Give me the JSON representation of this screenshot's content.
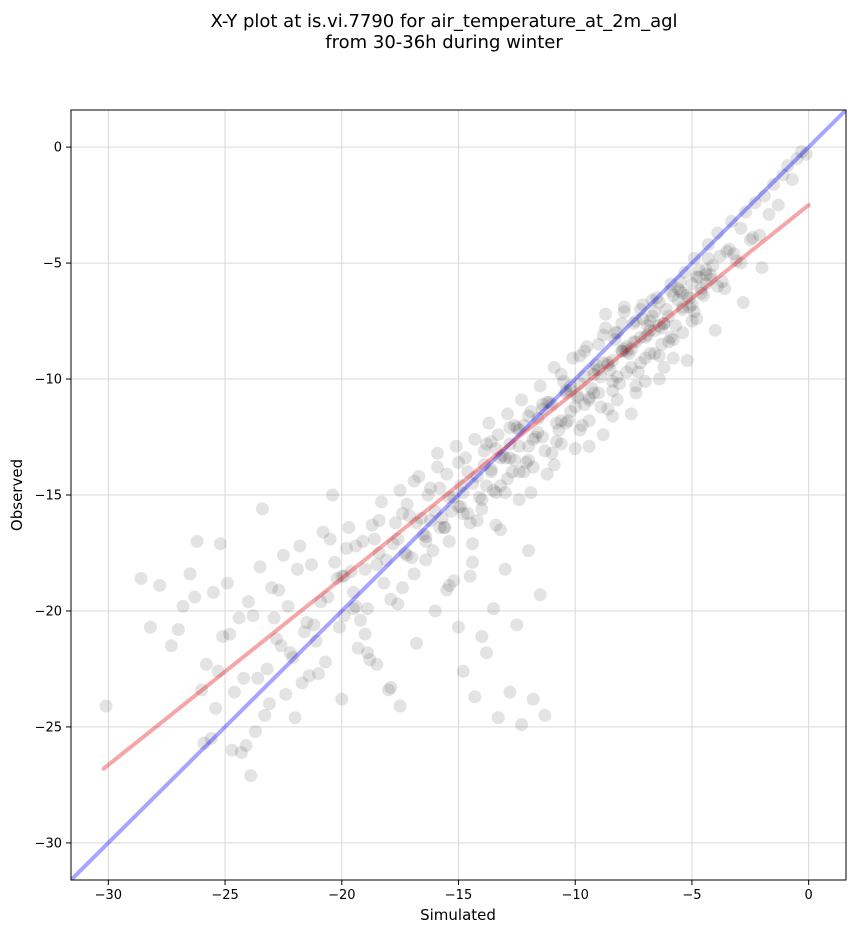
{
  "chart_data": {
    "type": "scatter",
    "title_line1": "X-Y plot at is.vi.7790 for air_temperature_at_2m_agl",
    "title_line2": "from 30-36h during winter",
    "xlabel": "Simulated",
    "ylabel": "Observed",
    "xlim": [
      -31.6,
      1.6
    ],
    "ylim": [
      -31.6,
      1.6
    ],
    "xticks": [
      -30,
      -25,
      -20,
      -15,
      -10,
      -5,
      0
    ],
    "yticks": [
      -30,
      -25,
      -20,
      -15,
      -10,
      -5,
      0
    ],
    "xtick_labels": [
      "−30",
      "−25",
      "−20",
      "−15",
      "−10",
      "−5",
      "0"
    ],
    "ytick_labels": [
      "−30",
      "−25",
      "−20",
      "−15",
      "−10",
      "−5",
      "0"
    ],
    "grid": true,
    "colors": {
      "points": "#000000",
      "identity_line": "#0000ff",
      "fit_line": "#e8141e"
    },
    "identity_line": {
      "x": [
        -31.6,
        1.6
      ],
      "y": [
        -31.6,
        1.6
      ]
    },
    "fit_line": {
      "x": [
        -30.2,
        0
      ],
      "y": [
        -26.8,
        -2.5
      ]
    },
    "points": {
      "x": [
        -30.1,
        -28.6,
        -28.2,
        -27.8,
        -27.3,
        -27.0,
        -26.8,
        -26.5,
        -26.3,
        -26.0,
        -25.8,
        -25.5,
        -25.3,
        -25.1,
        -24.9,
        -24.6,
        -24.4,
        -24.1,
        -24.0,
        -23.8,
        -23.6,
        -23.5,
        -23.3,
        -23.0,
        -22.8,
        -22.5,
        -22.3,
        -22.1,
        -21.8,
        -21.5,
        -21.3,
        -21.1,
        -20.8,
        -20.6,
        -20.3,
        -20.1,
        -19.9,
        -19.7,
        -19.5,
        -19.3,
        -19.1,
        -18.9,
        -18.7,
        -18.5,
        -18.3,
        -18.1,
        -17.9,
        -17.7,
        -17.5,
        -17.3,
        -17.1,
        -16.9,
        -16.7,
        -16.5,
        -16.3,
        -16.1,
        -15.9,
        -15.7,
        -15.5,
        -15.3,
        -15.1,
        -14.9,
        -14.7,
        -14.5,
        -14.3,
        -14.1,
        -13.9,
        -13.7,
        -13.5,
        -13.3,
        -13.1,
        -12.9,
        -12.7,
        -12.5,
        -12.3,
        -12.1,
        -11.9,
        -11.7,
        -11.5,
        -11.3,
        -11.1,
        -10.9,
        -10.7,
        -10.5,
        -10.3,
        -10.1,
        -9.9,
        -9.7,
        -9.5,
        -9.3,
        -9.1,
        -8.9,
        -8.7,
        -8.5,
        -8.3,
        -8.1,
        -7.9,
        -7.7,
        -7.5,
        -7.3,
        -7.1,
        -6.9,
        -6.7,
        -6.5,
        -6.3,
        -6.1,
        -5.9,
        -5.7,
        -5.5,
        -5.3,
        -5.1,
        -4.9,
        -4.7,
        -4.5,
        -4.3,
        -4.1,
        -3.9,
        -3.7,
        -3.5,
        -3.3,
        -3.1,
        -2.9,
        -2.7,
        -2.5,
        -2.3,
        -2.1,
        -1.9,
        -1.7,
        -1.5,
        -1.3,
        -1.1,
        -0.9,
        -0.7,
        -0.5,
        -0.3,
        -0.1,
        -25.6,
        -25.2,
        -24.8,
        -24.3,
        -23.2,
        -22.7,
        -22.0,
        -21.6,
        -21.0,
        -20.5,
        -20.0,
        -19.6,
        -19.2,
        -18.8,
        -18.4,
        -17.6,
        -17.2,
        -16.8,
        -16.4,
        -16.0,
        -15.6,
        -15.2,
        -14.8,
        -14.4,
        -14.0,
        -13.6,
        -13.2,
        -12.8,
        -12.4,
        -12.0,
        -11.6,
        -11.2,
        -10.8,
        -10.4,
        -10.0,
        -9.6,
        -9.2,
        -8.8,
        -8.4,
        -8.0,
        -7.6,
        -7.2,
        -6.8,
        -6.4,
        -6.0,
        -5.6,
        -5.2,
        -4.8,
        -4.4,
        -4.0,
        -3.6,
        -3.2,
        -2.8,
        -2.4,
        -2.0,
        -23.9,
        -23.4,
        -22.9,
        -22.4,
        -21.9,
        -21.4,
        -20.9,
        -20.4,
        -19.9,
        -19.4,
        -18.9,
        -18.4,
        -17.9,
        -17.4,
        -16.9,
        -16.4,
        -15.9,
        -15.4,
        -14.9,
        -14.4,
        -13.9,
        -13.4,
        -12.9,
        -12.4,
        -11.9,
        -11.4,
        -10.9,
        -10.4,
        -9.9,
        -9.4,
        -8.9,
        -8.4,
        -7.9,
        -7.4,
        -6.9,
        -6.4,
        -5.9,
        -5.4,
        -4.9,
        -4.4,
        -3.9,
        -3.4,
        -2.9,
        -20.2,
        -19.8,
        -19.4,
        -19.0,
        -18.6,
        -18.2,
        -17.8,
        -17.4,
        -17.0,
        -16.6,
        -16.2,
        -15.8,
        -15.4,
        -15.0,
        -14.6,
        -14.2,
        -13.8,
        -13.4,
        -13.0,
        -12.6,
        -12.2,
        -11.8,
        -11.4,
        -11.0,
        -10.6,
        -10.2,
        -9.8,
        -9.4,
        -9.0,
        -8.6,
        -8.2,
        -7.8,
        -7.4,
        -7.0,
        -6.6,
        -6.2,
        -5.8,
        -5.4,
        -5.0,
        -4.6,
        -4.2,
        -3.8,
        -16.2,
        -15.8,
        -15.4,
        -15.0,
        -14.6,
        -14.2,
        -13.8,
        -13.4,
        -13.0,
        -12.6,
        -12.2,
        -11.8,
        -11.4,
        -11.0,
        -10.6,
        -10.2,
        -9.8,
        -9.4,
        -9.0,
        -8.6,
        -8.2,
        -7.8,
        -7.4,
        -7.0,
        -6.6,
        -6.2,
        -5.8,
        -5.4,
        -5.0,
        -15.5,
        -15.0,
        -14.5,
        -14.0,
        -13.5,
        -13.0,
        -12.5,
        -12.0,
        -11.5,
        -14.8,
        -14.3,
        -13.8,
        -13.3,
        -12.8,
        -12.3,
        -11.8,
        -11.3,
        -20.0,
        -19.5,
        -19.0,
        -18.5,
        -18.0,
        -17.5,
        -22.2,
        -21.7,
        -21.2,
        -20.7,
        -26.2,
        -25.9,
        -25.4,
        -24.7,
        -24.2,
        -23.7,
        -23.1,
        -22.6,
        -8.7,
        -8.3,
        -7.9,
        -7.5,
        -7.1,
        -6.7,
        -6.3,
        -5.9,
        -5.5,
        -5.1,
        -4.7,
        -4.3,
        -9.6,
        -9.2,
        -8.8,
        -8.4,
        -8.0,
        -7.6,
        -7.2,
        -6.8,
        -6.4,
        -6.0,
        -5.6,
        -5.2,
        -4.8,
        -4.4,
        -10.6,
        -10.2,
        -9.8,
        -9.4,
        -9.0,
        -8.6,
        -8.2,
        -7.8,
        -7.4,
        -7.0,
        -6.6,
        -6.2,
        -5.8,
        -5.4,
        -5.0,
        -4.6,
        -4.2,
        -13.6,
        -13.2,
        -12.8,
        -12.4,
        -12.0,
        -11.6,
        -11.2,
        -10.8,
        -10.4,
        -10.0,
        -9.6,
        -9.2,
        -8.8,
        -8.4,
        -8.0,
        -7.6,
        -7.2,
        -6.8,
        -6.4,
        -17.6,
        -17.2,
        -16.8,
        -16.4,
        -16.0,
        -15.6,
        -15.2,
        -14.8,
        -14.4,
        -14.0,
        -13.6,
        -13.2,
        -12.8,
        -12.4,
        -12.0
      ],
      "y": [
        -24.1,
        -18.6,
        -20.7,
        -18.9,
        -21.5,
        -20.8,
        -19.8,
        -18.4,
        -19.4,
        -23.4,
        -22.3,
        -19.2,
        -22.6,
        -21.1,
        -18.8,
        -23.5,
        -20.3,
        -25.8,
        -19.6,
        -20.2,
        -22.9,
        -18.1,
        -24.5,
        -19.0,
        -21.2,
        -17.6,
        -19.8,
        -22.0,
        -17.2,
        -20.5,
        -18.0,
        -21.3,
        -16.6,
        -19.4,
        -17.9,
        -20.7,
        -18.5,
        -16.4,
        -19.2,
        -21.6,
        -17.0,
        -19.9,
        -16.3,
        -18.0,
        -15.3,
        -17.8,
        -19.5,
        -16.2,
        -14.8,
        -17.5,
        -15.9,
        -18.4,
        -14.2,
        -16.7,
        -15.0,
        -17.4,
        -13.8,
        -16.0,
        -14.1,
        -15.7,
        -12.9,
        -14.6,
        -13.4,
        -16.2,
        -12.6,
        -15.1,
        -13.7,
        -11.9,
        -14.8,
        -12.4,
        -13.3,
        -11.5,
        -14.0,
        -12.1,
        -10.9,
        -13.6,
        -11.4,
        -12.5,
        -10.3,
        -13.1,
        -11.0,
        -9.5,
        -12.2,
        -10.1,
        -11.8,
        -9.1,
        -10.7,
        -12.0,
        -8.6,
        -10.4,
        -9.4,
        -11.2,
        -7.8,
        -9.6,
        -8.3,
        -10.2,
        -7.1,
        -8.9,
        -7.6,
        -9.7,
        -6.8,
        -8.1,
        -7.3,
        -6.5,
        -8.5,
        -7.0,
        -5.9,
        -7.7,
        -6.2,
        -5.4,
        -6.9,
        -4.8,
        -5.6,
        -6.4,
        -4.2,
        -5.1,
        -3.7,
        -5.8,
        -4.5,
        -3.2,
        -4.9,
        -3.5,
        -2.8,
        -4.0,
        -2.4,
        -3.8,
        -2.1,
        -2.9,
        -1.6,
        -2.5,
        -1.2,
        -0.8,
        -1.4,
        -0.5,
        -0.2,
        -0.3,
        -25.5,
        -17.1,
        -21.0,
        -26.1,
        -22.5,
        -19.1,
        -24.6,
        -20.9,
        -22.7,
        -16.9,
        -23.8,
        -18.3,
        -20.4,
        -22.1,
        -17.5,
        -19.7,
        -15.4,
        -21.4,
        -17.8,
        -20.0,
        -16.4,
        -18.7,
        -14.9,
        -17.1,
        -15.6,
        -13.9,
        -16.5,
        -12.8,
        -15.2,
        -13.5,
        -11.7,
        -14.1,
        -12.7,
        -10.6,
        -13.0,
        -11.1,
        -9.8,
        -12.4,
        -10.5,
        -8.8,
        -11.5,
        -9.3,
        -7.5,
        -10.0,
        -8.4,
        -6.6,
        -9.2,
        -7.4,
        -5.5,
        -7.9,
        -6.1,
        -4.6,
        -6.7,
        -3.9,
        -5.2,
        -27.1,
        -15.6,
        -20.3,
        -23.6,
        -18.2,
        -22.8,
        -19.6,
        -15.0,
        -20.2,
        -17.2,
        -21.8,
        -16.1,
        -23.3,
        -19.0,
        -14.4,
        -16.8,
        -13.2,
        -18.9,
        -15.5,
        -17.9,
        -13.1,
        -16.3,
        -14.3,
        -12.2,
        -14.9,
        -11.3,
        -13.7,
        -11.9,
        -10.8,
        -12.9,
        -9.9,
        -11.6,
        -8.7,
        -10.6,
        -7.7,
        -9.0,
        -8.2,
        -6.3,
        -7.1,
        -5.3,
        -6.0,
        -4.4,
        -5.0,
        -18.6,
        -17.3,
        -19.8,
        -18.2,
        -16.9,
        -18.8,
        -17.1,
        -15.8,
        -17.7,
        -16.0,
        -14.7,
        -16.4,
        -15.1,
        -13.6,
        -15.8,
        -14.2,
        -12.8,
        -14.9,
        -13.4,
        -12.0,
        -14.0,
        -12.6,
        -11.1,
        -13.2,
        -11.8,
        -10.3,
        -12.2,
        -10.9,
        -9.6,
        -11.3,
        -9.9,
        -8.6,
        -10.3,
        -9.1,
        -7.9,
        -9.5,
        -8.3,
        -6.9,
        -7.5,
        -6.1,
        -5.7,
        -4.7,
        -16.1,
        -14.7,
        -17.0,
        -15.5,
        -14.0,
        -16.1,
        -14.6,
        -13.0,
        -14.9,
        -13.5,
        -12.0,
        -13.8,
        -12.5,
        -11.1,
        -12.8,
        -11.4,
        -10.2,
        -11.8,
        -10.6,
        -9.3,
        -10.9,
        -9.7,
        -8.4,
        -10.1,
        -8.9,
        -7.6,
        -9.1,
        -8.0,
        -6.8,
        -19.1,
        -20.7,
        -18.5,
        -21.1,
        -19.9,
        -18.2,
        -20.6,
        -17.4,
        -19.3,
        -22.6,
        -23.7,
        -21.8,
        -24.6,
        -23.5,
        -24.9,
        -23.8,
        -24.5,
        -18.5,
        -19.9,
        -21.0,
        -22.3,
        -23.4,
        -24.1,
        -21.8,
        -23.1,
        -20.6,
        -22.2,
        -17.0,
        -25.7,
        -24.2,
        -26.0,
        -22.9,
        -25.2,
        -24.0,
        -21.5,
        -7.2,
        -8.0,
        -6.9,
        -8.4,
        -7.4,
        -6.6,
        -7.8,
        -6.2,
        -5.8,
        -6.5,
        -5.3,
        -4.8,
        -8.8,
        -9.6,
        -8.1,
        -9.2,
        -7.6,
        -8.7,
        -7.0,
        -7.9,
        -6.7,
        -7.3,
        -6.1,
        -6.4,
        -5.6,
        -5.9,
        -9.8,
        -10.5,
        -9.0,
        -10.8,
        -8.5,
        -9.4,
        -8.0,
        -8.8,
        -7.5,
        -8.2,
        -7.1,
        -7.6,
        -6.4,
        -7.0,
        -5.9,
        -6.3,
        -5.5,
        -12.7,
        -13.4,
        -12.1,
        -12.9,
        -11.6,
        -12.3,
        -11.0,
        -11.9,
        -10.5,
        -11.2,
        -9.9,
        -10.6,
        -9.3,
        -10.1,
        -8.8,
        -9.5,
        -8.2,
        -8.9,
        -7.7,
        -16.9,
        -17.6,
        -16.2,
        -17.0,
        -15.7,
        -16.4,
        -15.1,
        -15.8,
        -14.5,
        -15.2,
        -14.0,
        -14.6,
        -13.4,
        -14.0,
        -12.9
      ]
    }
  }
}
